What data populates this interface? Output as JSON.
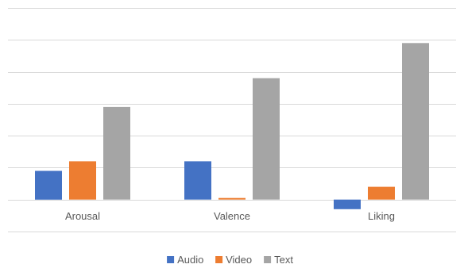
{
  "chart_data": {
    "type": "bar",
    "categories": [
      "Arousal",
      "Valence",
      "Liking"
    ],
    "series": [
      {
        "name": "Audio",
        "values": [
          0.09,
          0.12,
          -0.03
        ],
        "color": "#4472C4"
      },
      {
        "name": "Video",
        "values": [
          0.12,
          0.005,
          0.04
        ],
        "color": "#ED7D31"
      },
      {
        "name": "Text",
        "values": [
          0.29,
          0.38,
          0.49
        ],
        "color": "#A5A5A5"
      }
    ],
    "title": "",
    "xlabel": "",
    "ylabel": "",
    "ylim": [
      -0.1,
      0.6
    ],
    "grid": true,
    "tick_labels_y": false,
    "legend": "bottom-center",
    "gridline_color": "#D9D9D9"
  }
}
